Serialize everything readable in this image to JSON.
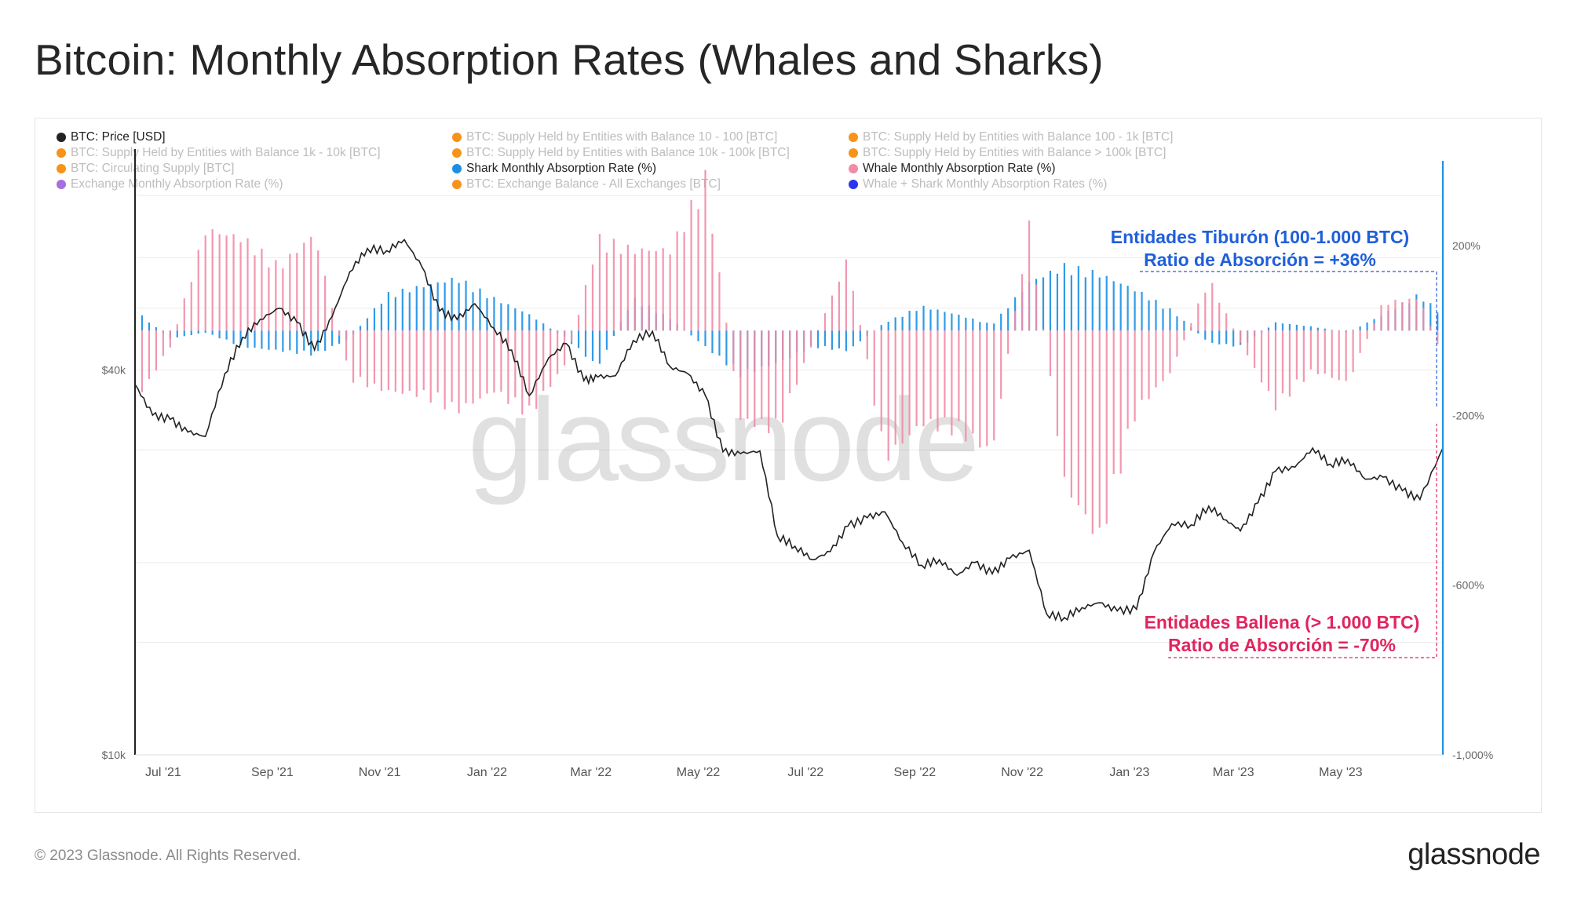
{
  "title": "Bitcoin: Monthly Absorption Rates (Whales and Sharks)",
  "legend": [
    {
      "label": "BTC: Price [USD]",
      "color": "#222222",
      "active": true
    },
    {
      "label": "BTC: Supply Held by Entities with Balance 10 - 100 [BTC]",
      "color": "#f7931a",
      "active": false
    },
    {
      "label": "BTC: Supply Held by Entities with Balance 100 - 1k [BTC]",
      "color": "#f7931a",
      "active": false
    },
    {
      "label": "BTC: Supply Held by Entities with Balance 1k - 10k [BTC]",
      "color": "#f7931a",
      "active": false
    },
    {
      "label": "BTC: Supply Held by Entities with Balance 10k - 100k [BTC]",
      "color": "#f7931a",
      "active": false
    },
    {
      "label": "BTC: Supply Held by Entities with Balance > 100k [BTC]",
      "color": "#f7931a",
      "active": false
    },
    {
      "label": "BTC: Circulating Supply [BTC]",
      "color": "#f7931a",
      "active": false
    },
    {
      "label": "Shark Monthly Absorption Rate (%)",
      "color": "#1a8fe3",
      "active": true
    },
    {
      "label": "Whale Monthly Absorption Rate (%)",
      "color": "#f08ca6",
      "active": true
    },
    {
      "label": "Exchange Monthly Absorption Rate (%)",
      "color": "#a66ee0",
      "active": false
    },
    {
      "label": "BTC: Exchange Balance - All Exchanges [BTC]",
      "color": "#f7931a",
      "active": false
    },
    {
      "label": "Whale + Shark Monthly Absorption Rates (%)",
      "color": "#2b35f0",
      "active": false
    }
  ],
  "annotations": {
    "shark_line1": "Entidades Tiburón (100-1.000 BTC)",
    "shark_line2": "Ratio de Absorción = +36%",
    "whale_line1": "Entidades Ballena (> 1.000 BTC)",
    "whale_line2": "Ratio de Absorción = -70%"
  },
  "watermark": "glassnode",
  "footer": {
    "copyright": "© 2023 Glassnode. All Rights Reserved.",
    "logo": "glassnode"
  },
  "colors": {
    "price": "#222222",
    "shark": "#1a8fe3",
    "whale": "#f08ca6",
    "right_axis": "#1a8fe3",
    "shark_annotation": "#1f5fd9",
    "whale_annotation": "#e0255f"
  },
  "chart_data": {
    "type": "line",
    "title": "Bitcoin: Monthly Absorption Rates (Whales and Sharks)",
    "x_tick_labels": [
      "Jul '21",
      "Sep '21",
      "Nov '21",
      "Jan '22",
      "Mar '22",
      "May '22",
      "Jul '22",
      "Sep '22",
      "Nov '22",
      "Jan '23",
      "Mar '23",
      "May '23"
    ],
    "x_range": [
      "2021-06-15",
      "2023-06-28"
    ],
    "y_left": {
      "label": "",
      "scale": "log",
      "ticks": [
        "$10k",
        "$40k"
      ],
      "tick_values": [
        10000,
        40000
      ],
      "range": [
        10000,
        85000
      ]
    },
    "y_right": {
      "label": "",
      "scale": "linear",
      "ticks": [
        "200%",
        "-200%",
        "-600%",
        "-1,000%"
      ],
      "tick_values": [
        200,
        -200,
        -600,
        -1000
      ],
      "range": [
        -1000,
        400
      ]
    },
    "grid": true,
    "legend_position": "top",
    "series": [
      {
        "name": "BTC: Price [USD]",
        "type": "line",
        "axis": "left",
        "x": [
          "2021-06-15",
          "2021-06-25",
          "2021-07-05",
          "2021-07-15",
          "2021-07-25",
          "2021-08-05",
          "2021-08-15",
          "2021-08-25",
          "2021-09-05",
          "2021-09-15",
          "2021-09-25",
          "2021-10-05",
          "2021-10-15",
          "2021-10-25",
          "2021-11-05",
          "2021-11-15",
          "2021-11-25",
          "2021-12-05",
          "2021-12-15",
          "2021-12-25",
          "2022-01-05",
          "2022-01-15",
          "2022-01-25",
          "2022-02-05",
          "2022-02-15",
          "2022-02-25",
          "2022-03-05",
          "2022-03-15",
          "2022-03-25",
          "2022-04-05",
          "2022-04-15",
          "2022-04-25",
          "2022-05-05",
          "2022-05-15",
          "2022-05-25",
          "2022-06-05",
          "2022-06-15",
          "2022-06-25",
          "2022-07-05",
          "2022-07-15",
          "2022-07-25",
          "2022-08-05",
          "2022-08-15",
          "2022-08-25",
          "2022-09-05",
          "2022-09-15",
          "2022-09-25",
          "2022-10-05",
          "2022-10-15",
          "2022-10-25",
          "2022-11-05",
          "2022-11-15",
          "2022-11-25",
          "2022-12-05",
          "2022-12-15",
          "2022-12-25",
          "2023-01-05",
          "2023-01-15",
          "2023-01-25",
          "2023-02-05",
          "2023-02-15",
          "2023-02-25",
          "2023-03-05",
          "2023-03-15",
          "2023-03-25",
          "2023-04-05",
          "2023-04-15",
          "2023-04-25",
          "2023-05-05",
          "2023-05-15",
          "2023-05-25",
          "2023-06-05",
          "2023-06-15",
          "2023-06-28"
        ],
        "y": [
          38000,
          34000,
          33500,
          32000,
          31500,
          39500,
          45000,
          48000,
          50000,
          47500,
          43000,
          48500,
          57000,
          62000,
          61500,
          64000,
          58000,
          49500,
          48000,
          50800,
          46500,
          43000,
          36500,
          41800,
          44000,
          38500,
          39000,
          39200,
          44500,
          46000,
          40500,
          39500,
          36500,
          29800,
          29600,
          29900,
          22000,
          21200,
          20200,
          20800,
          22800,
          23500,
          24000,
          21500,
          19800,
          20200,
          19100,
          20000,
          19200,
          20300,
          20900,
          16600,
          16400,
          17000,
          17300,
          16800,
          16900,
          20800,
          23000,
          22900,
          24500,
          23300,
          22400,
          24800,
          27800,
          28200,
          30200,
          28500,
          29000,
          27000,
          27200,
          25900,
          25100,
          30200
        ]
      },
      {
        "name": "Shark Monthly Absorption Rate (%)",
        "type": "bar",
        "axis": "right",
        "x": [
          "2021-06-15",
          "2021-07-05",
          "2021-07-25",
          "2021-08-15",
          "2021-09-05",
          "2021-09-25",
          "2021-10-15",
          "2021-11-05",
          "2021-11-25",
          "2021-12-15",
          "2022-01-05",
          "2022-01-25",
          "2022-02-15",
          "2022-03-05",
          "2022-03-25",
          "2022-04-15",
          "2022-05-05",
          "2022-05-25",
          "2022-06-15",
          "2022-07-05",
          "2022-07-25",
          "2022-08-15",
          "2022-09-05",
          "2022-09-25",
          "2022-10-15",
          "2022-11-05",
          "2022-11-25",
          "2022-12-15",
          "2023-01-05",
          "2023-01-25",
          "2023-02-15",
          "2023-03-05",
          "2023-03-25",
          "2023-04-15",
          "2023-05-05",
          "2023-05-25",
          "2023-06-15",
          "2023-06-28"
        ],
        "y": [
          50,
          -20,
          -5,
          -40,
          -50,
          -60,
          -20,
          90,
          110,
          130,
          80,
          40,
          -20,
          -90,
          80,
          30,
          -40,
          -110,
          -80,
          -40,
          -50,
          20,
          60,
          40,
          15,
          120,
          160,
          140,
          100,
          50,
          -30,
          -40,
          20,
          10,
          -5,
          40,
          90,
          36
        ]
      },
      {
        "name": "Whale Monthly Absorption Rate (%)",
        "type": "bar",
        "axis": "right",
        "x": [
          "2021-06-15",
          "2021-07-05",
          "2021-07-25",
          "2021-08-15",
          "2021-09-05",
          "2021-09-25",
          "2021-10-15",
          "2021-11-05",
          "2021-11-25",
          "2021-12-15",
          "2022-01-05",
          "2022-01-25",
          "2022-02-15",
          "2022-03-05",
          "2022-03-25",
          "2022-04-15",
          "2022-05-05",
          "2022-05-25",
          "2022-06-15",
          "2022-07-05",
          "2022-07-25",
          "2022-08-15",
          "2022-09-05",
          "2022-09-25",
          "2022-10-15",
          "2022-11-05",
          "2022-11-25",
          "2022-12-15",
          "2023-01-05",
          "2023-01-25",
          "2023-02-15",
          "2023-03-05",
          "2023-03-25",
          "2023-04-15",
          "2023-05-05",
          "2023-05-25",
          "2023-06-15",
          "2023-06-28"
        ],
        "y": [
          -180,
          -40,
          250,
          230,
          160,
          240,
          -120,
          -150,
          -160,
          -200,
          -150,
          -210,
          -80,
          230,
          200,
          200,
          380,
          -220,
          -250,
          -30,
          180,
          -320,
          -230,
          -250,
          -300,
          260,
          -380,
          -520,
          -200,
          -100,
          130,
          -30,
          -190,
          -100,
          -130,
          70,
          80,
          -70
        ]
      }
    ]
  }
}
